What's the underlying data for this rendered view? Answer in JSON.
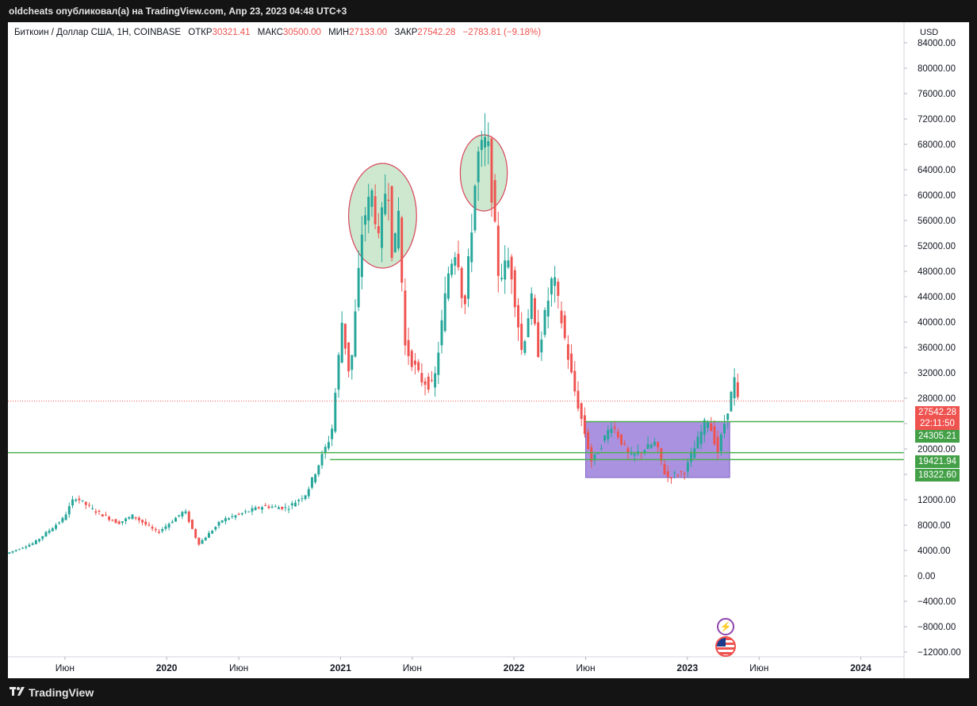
{
  "header": {
    "publisher_line": "oldcheats опубликовал(а) на TradingView.com, Апр 23, 2023 04:48 UTC+3"
  },
  "legend": {
    "symbol": "Биткоин / Доллар США, 1Н, COINBASE",
    "open_label": "ОТКР",
    "open_value": "30321.41",
    "high_label": "МАКС",
    "high_value": "30500.00",
    "low_label": "МИН",
    "low_value": "27133.00",
    "close_label": "ЗАКР",
    "close_value": "27542.28",
    "change": "−2783.81 (−9.18%)"
  },
  "price_tags": {
    "last_price": "27542.28",
    "countdown": "22:11:50",
    "level_1": "24305.21",
    "level_2": "19421.94",
    "level_3": "18322.60"
  },
  "footer": {
    "brand": "TradingView"
  },
  "colors": {
    "up": "#26a69a",
    "down": "#ef5350",
    "level_line": "#4caf50",
    "box_fill": "#9c7fdc",
    "ellipse_fill": "#c8e6c9",
    "ellipse_stroke": "#d9455b"
  },
  "icons": [
    "lightning-icon",
    "us-flag-icon",
    "tradingview-logo-icon"
  ],
  "chart_data": {
    "type": "candlestick",
    "symbol": "Биткоин / Доллар США",
    "currency": "USD",
    "ylim": [
      -12000,
      86000
    ],
    "y_ticks": [
      "84000.00",
      "80000.00",
      "76000.00",
      "72000.00",
      "68000.00",
      "64000.00",
      "60000.00",
      "56000.00",
      "52000.00",
      "48000.00",
      "44000.00",
      "40000.00",
      "36000.00",
      "32000.00",
      "28000.00",
      "24000.00",
      "20000.00",
      "16000.00",
      "12000.00",
      "8000.00",
      "4000.00",
      "0.00",
      "−4000.00",
      "−8000.00",
      "−12000.00"
    ],
    "y_tick_values": [
      84000,
      80000,
      76000,
      72000,
      68000,
      64000,
      60000,
      56000,
      52000,
      48000,
      44000,
      40000,
      36000,
      32000,
      28000,
      24000,
      20000,
      16000,
      12000,
      8000,
      4000,
      0,
      -4000,
      -8000,
      -12000
    ],
    "x_ticks": [
      "Июн",
      "2020",
      "Июн",
      "2021",
      "Июн",
      "2022",
      "Июн",
      "2023",
      "Июн",
      "2024"
    ],
    "x_tick_dates": [
      "2019-06-01",
      "2020-01-01",
      "2020-06-01",
      "2021-01-01",
      "2021-06-01",
      "2022-01-01",
      "2022-06-01",
      "2023-01-01",
      "2023-06-01",
      "2024-01-01"
    ],
    "x_range": [
      "2019-02-01",
      "2024-04-01"
    ],
    "price_path": [
      [
        "2019-02-01",
        3500
      ],
      [
        "2019-04-01",
        5200
      ],
      [
        "2019-06-01",
        9000
      ],
      [
        "2019-06-26",
        12500
      ],
      [
        "2019-08-01",
        10500
      ],
      [
        "2019-09-25",
        8300
      ],
      [
        "2019-10-26",
        9500
      ],
      [
        "2019-12-17",
        6800
      ],
      [
        "2020-02-12",
        10300
      ],
      [
        "2020-03-12",
        5000
      ],
      [
        "2020-05-01",
        8800
      ],
      [
        "2020-07-27",
        11000
      ],
      [
        "2020-09-15",
        10700
      ],
      [
        "2020-10-25",
        13000
      ],
      [
        "2020-11-25",
        18500
      ],
      [
        "2020-12-17",
        22500
      ],
      [
        "2021-01-08",
        40000
      ],
      [
        "2021-01-25",
        31000
      ],
      [
        "2021-02-21",
        56000
      ],
      [
        "2021-03-13",
        60500
      ],
      [
        "2021-03-26",
        52500
      ],
      [
        "2021-04-14",
        63500
      ],
      [
        "2021-04-25",
        49000
      ],
      [
        "2021-05-08",
        58000
      ],
      [
        "2021-05-19",
        36500
      ],
      [
        "2021-06-22",
        31000
      ],
      [
        "2021-07-20",
        29800
      ],
      [
        "2021-08-22",
        49000
      ],
      [
        "2021-09-07",
        52000
      ],
      [
        "2021-09-22",
        41000
      ],
      [
        "2021-10-20",
        66000
      ],
      [
        "2021-11-10",
        68800
      ],
      [
        "2021-12-04",
        47000
      ],
      [
        "2021-12-27",
        50000
      ],
      [
        "2022-01-22",
        35000
      ],
      [
        "2022-02-10",
        44000
      ],
      [
        "2022-02-24",
        35000
      ],
      [
        "2022-03-28",
        47500
      ],
      [
        "2022-05-10",
        30000
      ],
      [
        "2022-06-18",
        17800
      ],
      [
        "2022-07-30",
        24000
      ],
      [
        "2022-09-06",
        18600
      ],
      [
        "2022-10-30",
        21000
      ],
      [
        "2022-11-21",
        15500
      ],
      [
        "2022-12-31",
        16500
      ],
      [
        "2023-02-16",
        25000
      ],
      [
        "2023-03-10",
        19600
      ],
      [
        "2023-04-14",
        30800
      ],
      [
        "2023-04-20",
        27542.28
      ]
    ],
    "horizontal_levels": [
      24305.21,
      19421.94,
      18322.6
    ],
    "last_price": 27542.28,
    "rectangle": {
      "from": "2022-06-01",
      "to": "2023-03-31",
      "top": 24300,
      "bottom": 15500
    },
    "ellipses": [
      {
        "from": "2021-01-18",
        "to": "2021-06-10",
        "top": 65000,
        "bottom": 48500
      },
      {
        "from": "2021-09-10",
        "to": "2021-12-18",
        "top": 69500,
        "bottom": 57500
      }
    ],
    "legend_position": "top-left",
    "grid": false
  }
}
